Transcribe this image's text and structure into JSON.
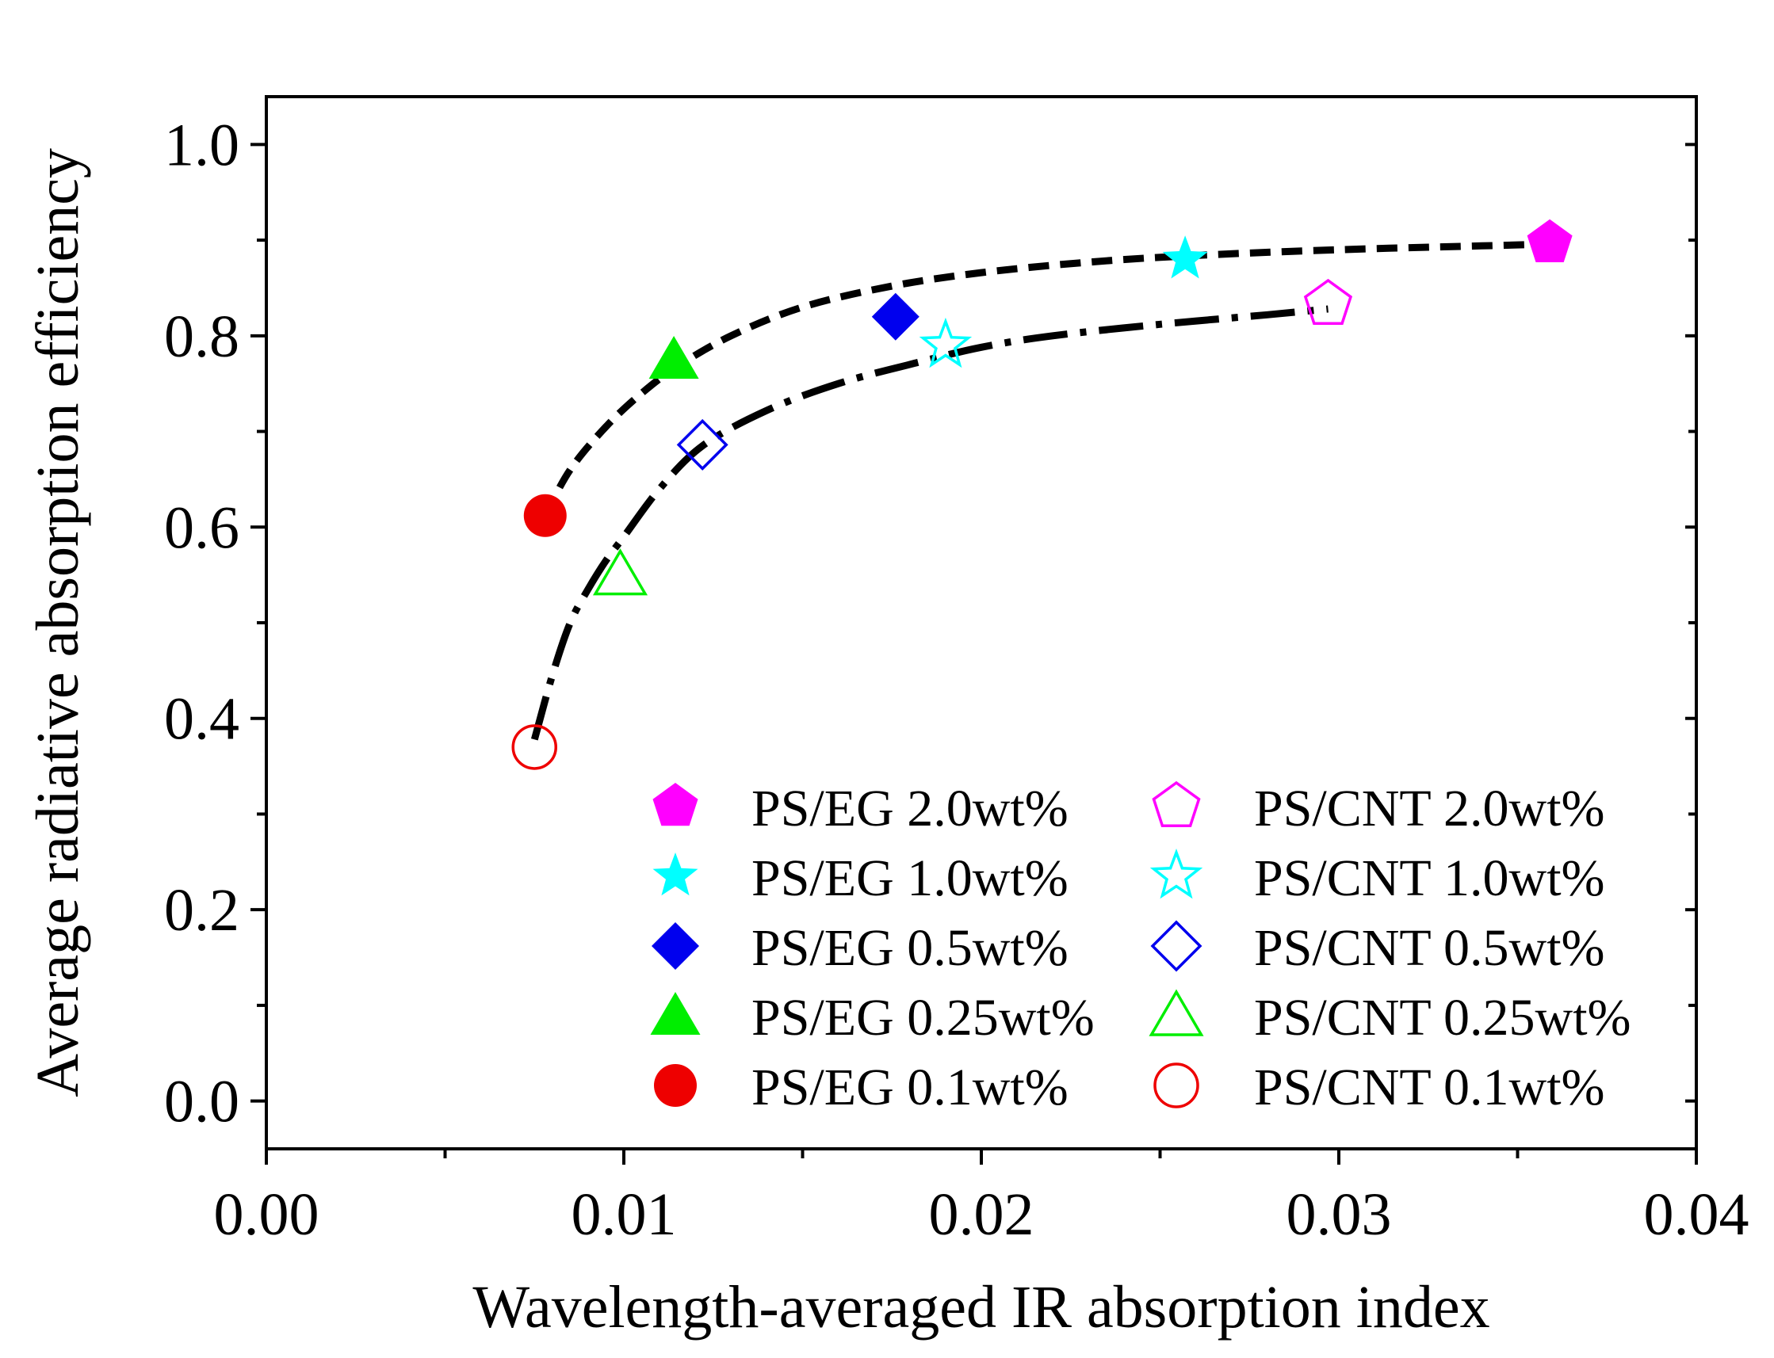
{
  "chart_data": {
    "type": "scatter",
    "title": "",
    "xlabel": "Wavelength-averaged IR absorption index",
    "ylabel": "Average radiative absorption efficiency",
    "xlim": [
      0.0,
      0.04
    ],
    "ylim": [
      -0.05,
      1.05
    ],
    "xticks": [
      0.0,
      0.01,
      0.02,
      0.03,
      0.04
    ],
    "xtick_labels": [
      "0.00",
      "0.01",
      "0.02",
      "0.03",
      "0.04"
    ],
    "yticks": [
      0.0,
      0.2,
      0.4,
      0.6,
      0.8,
      1.0
    ],
    "ytick_labels": [
      "0.0",
      "0.2",
      "0.4",
      "0.6",
      "0.8",
      "1.0"
    ],
    "grid": false,
    "legend_position": "bottom-right",
    "series": [
      {
        "name": "PS/EG 2.0wt%",
        "marker": "pentagon",
        "filled": true,
        "color": "#ff00ff",
        "x": 0.0359,
        "y": 0.897
      },
      {
        "name": "PS/EG 1.0wt%",
        "marker": "star",
        "filled": true,
        "color": "#00ffff",
        "x": 0.0257,
        "y": 0.88
      },
      {
        "name": "PS/EG 0.5wt%",
        "marker": "diamond",
        "filled": true,
        "color": "#0000ee",
        "x": 0.0176,
        "y": 0.82
      },
      {
        "name": "PS/EG 0.25wt%",
        "marker": "triangle",
        "filled": true,
        "color": "#00ee00",
        "x": 0.0114,
        "y": 0.775
      },
      {
        "name": "PS/EG 0.1wt%",
        "marker": "circle",
        "filled": true,
        "color": "#ee0000",
        "x": 0.0078,
        "y": 0.612
      },
      {
        "name": "PS/CNT 2.0wt%",
        "marker": "pentagon",
        "filled": false,
        "color": "#ff00ff",
        "x": 0.0297,
        "y": 0.833
      },
      {
        "name": "PS/CNT 1.0wt%",
        "marker": "star",
        "filled": false,
        "color": "#00ffff",
        "x": 0.019,
        "y": 0.79
      },
      {
        "name": "PS/CNT 0.5wt%",
        "marker": "diamond",
        "filled": false,
        "color": "#0000ee",
        "x": 0.0122,
        "y": 0.686
      },
      {
        "name": "PS/CNT 0.25wt%",
        "marker": "triangle",
        "filled": false,
        "color": "#00ee00",
        "x": 0.0099,
        "y": 0.55
      },
      {
        "name": "PS/CNT 0.1wt%",
        "marker": "circle",
        "filled": false,
        "color": "#ee0000",
        "x": 0.0075,
        "y": 0.37
      }
    ],
    "fit_curves": [
      {
        "name": "PS/EG fit",
        "style": "dashed",
        "color": "#000000",
        "x": [
          0.0078,
          0.0085,
          0.0095,
          0.0105,
          0.0115,
          0.013,
          0.015,
          0.0175,
          0.02,
          0.023,
          0.026,
          0.03,
          0.034,
          0.036
        ],
        "y": [
          0.612,
          0.66,
          0.705,
          0.74,
          0.768,
          0.8,
          0.83,
          0.852,
          0.866,
          0.877,
          0.884,
          0.89,
          0.894,
          0.896
        ]
      },
      {
        "name": "PS/CNT fit",
        "style": "dash-dot",
        "color": "#000000",
        "x": [
          0.0075,
          0.008,
          0.0085,
          0.009,
          0.0095,
          0.01,
          0.011,
          0.0122,
          0.014,
          0.016,
          0.018,
          0.02,
          0.022,
          0.025,
          0.028,
          0.0297
        ],
        "y": [
          0.378,
          0.445,
          0.5,
          0.535,
          0.565,
          0.59,
          0.64,
          0.685,
          0.722,
          0.75,
          0.77,
          0.788,
          0.8,
          0.812,
          0.822,
          0.828
        ]
      }
    ]
  }
}
